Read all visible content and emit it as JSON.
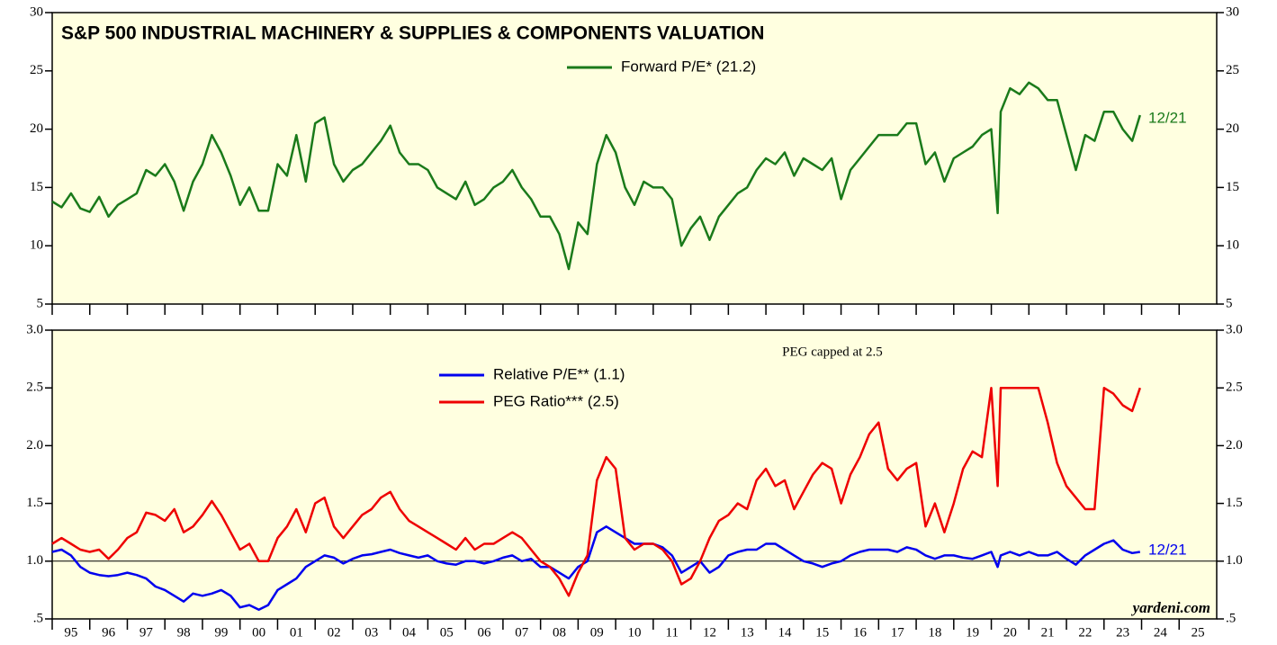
{
  "chart_data": [
    {
      "type": "line",
      "title": "S&P 500 INDUSTRIAL MACHINERY & SUPPLIES & COMPONENTS VALUATION",
      "xlim": [
        1995,
        2026
      ],
      "ylim": [
        5,
        30
      ],
      "yticks": [
        5,
        10,
        15,
        20,
        25,
        30
      ],
      "x": [
        1995,
        1995.25,
        1995.5,
        1995.75,
        1996,
        1996.25,
        1996.5,
        1996.75,
        1997,
        1997.25,
        1997.5,
        1997.75,
        1998,
        1998.25,
        1998.5,
        1998.75,
        1999,
        1999.25,
        1999.5,
        1999.75,
        2000,
        2000.25,
        2000.5,
        2000.75,
        2001,
        2001.25,
        2001.5,
        2001.75,
        2002,
        2002.25,
        2002.5,
        2002.75,
        2003,
        2003.25,
        2003.5,
        2003.75,
        2004,
        2004.25,
        2004.5,
        2004.75,
        2005,
        2005.25,
        2005.5,
        2005.75,
        2006,
        2006.25,
        2006.5,
        2006.75,
        2007,
        2007.25,
        2007.5,
        2007.75,
        2008,
        2008.25,
        2008.5,
        2008.75,
        2009,
        2009.25,
        2009.5,
        2009.75,
        2010,
        2010.25,
        2010.5,
        2010.75,
        2011,
        2011.25,
        2011.5,
        2011.75,
        2012,
        2012.25,
        2012.5,
        2012.75,
        2013,
        2013.25,
        2013.5,
        2013.75,
        2014,
        2014.25,
        2014.5,
        2014.75,
        2015,
        2015.25,
        2015.5,
        2015.75,
        2016,
        2016.25,
        2016.5,
        2016.75,
        2017,
        2017.25,
        2017.5,
        2017.75,
        2018,
        2018.25,
        2018.5,
        2018.75,
        2019,
        2019.25,
        2019.5,
        2019.75,
        2020,
        2020.17,
        2020.25,
        2020.5,
        2020.75,
        2021,
        2021.25,
        2021.5,
        2021.75,
        2022,
        2022.25,
        2022.5,
        2022.75,
        2023,
        2023.25,
        2023.5,
        2023.75,
        2023.96
      ],
      "series": [
        {
          "name": "Forward P/E* (21.2)",
          "color": "#1a7a1a",
          "values": [
            13.8,
            13.3,
            14.5,
            13.2,
            12.9,
            14.2,
            12.5,
            13.5,
            14.0,
            14.5,
            16.5,
            16.0,
            17.0,
            15.5,
            13.0,
            15.5,
            17.0,
            19.5,
            18.0,
            16.0,
            13.5,
            15.0,
            13.0,
            13.0,
            17.0,
            16.0,
            19.5,
            15.5,
            20.5,
            21.0,
            17.0,
            15.5,
            16.5,
            17.0,
            18.0,
            19.0,
            20.3,
            18.0,
            17.0,
            17.0,
            16.5,
            15.0,
            14.5,
            14.0,
            15.5,
            13.5,
            14.0,
            15.0,
            15.5,
            16.5,
            15.0,
            14.0,
            12.5,
            12.5,
            11.0,
            8.0,
            12.0,
            11.0,
            17.0,
            19.5,
            18.0,
            15.0,
            13.5,
            15.5,
            15.0,
            15.0,
            14.0,
            10.0,
            11.5,
            12.5,
            10.5,
            12.5,
            13.5,
            14.5,
            15.0,
            16.5,
            17.5,
            17.0,
            18.0,
            16.0,
            17.5,
            17.0,
            16.5,
            17.5,
            14.0,
            16.5,
            17.5,
            18.5,
            19.5,
            19.5,
            19.5,
            20.5,
            20.5,
            17.0,
            18.0,
            15.5,
            17.5,
            18.0,
            18.5,
            19.5,
            20.0,
            12.8,
            21.5,
            23.5,
            23.0,
            24.0,
            23.5,
            22.5,
            22.5,
            19.5,
            16.5,
            19.5,
            19.0,
            21.5,
            21.5,
            20.0,
            19.0,
            21.2
          ]
        }
      ],
      "annotations": [
        "12/21"
      ]
    },
    {
      "type": "line",
      "xlim": [
        1995,
        2026
      ],
      "xticks": [
        {
          "value": 1995,
          "label": "95"
        },
        {
          "value": 1996,
          "label": "96"
        },
        {
          "value": 1997,
          "label": "97"
        },
        {
          "value": 1998,
          "label": "98"
        },
        {
          "value": 1999,
          "label": "99"
        },
        {
          "value": 2000,
          "label": "00"
        },
        {
          "value": 2001,
          "label": "01"
        },
        {
          "value": 2002,
          "label": "02"
        },
        {
          "value": 2003,
          "label": "03"
        },
        {
          "value": 2004,
          "label": "04"
        },
        {
          "value": 2005,
          "label": "05"
        },
        {
          "value": 2006,
          "label": "06"
        },
        {
          "value": 2007,
          "label": "07"
        },
        {
          "value": 2008,
          "label": "08"
        },
        {
          "value": 2009,
          "label": "09"
        },
        {
          "value": 2010,
          "label": "10"
        },
        {
          "value": 2011,
          "label": "11"
        },
        {
          "value": 2012,
          "label": "12"
        },
        {
          "value": 2013,
          "label": "13"
        },
        {
          "value": 2014,
          "label": "14"
        },
        {
          "value": 2015,
          "label": "15"
        },
        {
          "value": 2016,
          "label": "16"
        },
        {
          "value": 2017,
          "label": "17"
        },
        {
          "value": 2018,
          "label": "18"
        },
        {
          "value": 2019,
          "label": "19"
        },
        {
          "value": 2020,
          "label": "20"
        },
        {
          "value": 2021,
          "label": "21"
        },
        {
          "value": 2022,
          "label": "22"
        },
        {
          "value": 2023,
          "label": "23"
        },
        {
          "value": 2024,
          "label": "24"
        },
        {
          "value": 2025,
          "label": "25"
        }
      ],
      "ylim": [
        0.5,
        3.0
      ],
      "yticks": [
        {
          "value": 0.5,
          "label": ".5"
        },
        {
          "value": 1.0,
          "label": "1.0"
        },
        1.5,
        {
          "value": 2.0,
          "label": "2.0"
        },
        2.5,
        {
          "value": 3.0,
          "label": "3.0"
        }
      ],
      "x": [
        1995,
        1995.25,
        1995.5,
        1995.75,
        1996,
        1996.25,
        1996.5,
        1996.75,
        1997,
        1997.25,
        1997.5,
        1997.75,
        1998,
        1998.25,
        1998.5,
        1998.75,
        1999,
        1999.25,
        1999.5,
        1999.75,
        2000,
        2000.25,
        2000.5,
        2000.75,
        2001,
        2001.25,
        2001.5,
        2001.75,
        2002,
        2002.25,
        2002.5,
        2002.75,
        2003,
        2003.25,
        2003.5,
        2003.75,
        2004,
        2004.25,
        2004.5,
        2004.75,
        2005,
        2005.25,
        2005.5,
        2005.75,
        2006,
        2006.25,
        2006.5,
        2006.75,
        2007,
        2007.25,
        2007.5,
        2007.75,
        2008,
        2008.25,
        2008.5,
        2008.75,
        2009,
        2009.25,
        2009.5,
        2009.75,
        2010,
        2010.25,
        2010.5,
        2010.75,
        2011,
        2011.25,
        2011.5,
        2011.75,
        2012,
        2012.25,
        2012.5,
        2012.75,
        2013,
        2013.25,
        2013.5,
        2013.75,
        2014,
        2014.25,
        2014.5,
        2014.75,
        2015,
        2015.25,
        2015.5,
        2015.75,
        2016,
        2016.25,
        2016.5,
        2016.75,
        2017,
        2017.25,
        2017.5,
        2017.75,
        2018,
        2018.25,
        2018.5,
        2018.75,
        2019,
        2019.25,
        2019.5,
        2019.75,
        2020,
        2020.17,
        2020.25,
        2020.5,
        2020.75,
        2021,
        2021.25,
        2021.5,
        2021.75,
        2022,
        2022.25,
        2022.5,
        2022.75,
        2023,
        2023.25,
        2023.5,
        2023.75,
        2023.96
      ],
      "series": [
        {
          "name": "Relative P/E** (1.1)",
          "color": "#0000ee",
          "values": [
            1.08,
            1.1,
            1.05,
            0.95,
            0.9,
            0.88,
            0.87,
            0.88,
            0.9,
            0.88,
            0.85,
            0.78,
            0.75,
            0.7,
            0.65,
            0.72,
            0.7,
            0.72,
            0.75,
            0.7,
            0.6,
            0.62,
            0.58,
            0.62,
            0.75,
            0.8,
            0.85,
            0.95,
            1.0,
            1.05,
            1.03,
            0.98,
            1.02,
            1.05,
            1.06,
            1.08,
            1.1,
            1.07,
            1.05,
            1.03,
            1.05,
            1.0,
            0.98,
            0.97,
            1.0,
            1.0,
            0.98,
            1.0,
            1.03,
            1.05,
            1.0,
            1.02,
            0.95,
            0.95,
            0.9,
            0.85,
            0.95,
            1.0,
            1.25,
            1.3,
            1.25,
            1.2,
            1.15,
            1.15,
            1.15,
            1.12,
            1.05,
            0.9,
            0.95,
            1.0,
            0.9,
            0.95,
            1.05,
            1.08,
            1.1,
            1.1,
            1.15,
            1.15,
            1.1,
            1.05,
            1.0,
            0.98,
            0.95,
            0.98,
            1.0,
            1.05,
            1.08,
            1.1,
            1.1,
            1.1,
            1.08,
            1.12,
            1.1,
            1.05,
            1.02,
            1.05,
            1.05,
            1.03,
            1.02,
            1.05,
            1.08,
            0.95,
            1.05,
            1.08,
            1.05,
            1.08,
            1.05,
            1.05,
            1.08,
            1.02,
            0.97,
            1.05,
            1.1,
            1.15,
            1.18,
            1.1,
            1.07,
            1.08
          ]
        },
        {
          "name": "PEG Ratio*** (2.5)",
          "color": "#ee0000",
          "values": [
            1.15,
            1.2,
            1.15,
            1.1,
            1.08,
            1.1,
            1.02,
            1.1,
            1.2,
            1.25,
            1.42,
            1.4,
            1.35,
            1.45,
            1.25,
            1.3,
            1.4,
            1.52,
            1.4,
            1.25,
            1.1,
            1.15,
            1.0,
            1.0,
            1.2,
            1.3,
            1.45,
            1.25,
            1.5,
            1.55,
            1.3,
            1.2,
            1.3,
            1.4,
            1.45,
            1.55,
            1.6,
            1.45,
            1.35,
            1.3,
            1.25,
            1.2,
            1.15,
            1.1,
            1.2,
            1.1,
            1.15,
            1.15,
            1.2,
            1.25,
            1.2,
            1.1,
            1.0,
            0.95,
            0.85,
            0.7,
            0.9,
            1.05,
            1.7,
            1.9,
            1.8,
            1.2,
            1.1,
            1.15,
            1.15,
            1.1,
            1.0,
            0.8,
            0.85,
            1.0,
            1.2,
            1.35,
            1.4,
            1.5,
            1.45,
            1.7,
            1.8,
            1.65,
            1.7,
            1.45,
            1.6,
            1.75,
            1.85,
            1.8,
            1.5,
            1.75,
            1.9,
            2.1,
            2.2,
            1.8,
            1.7,
            1.8,
            1.85,
            1.3,
            1.5,
            1.25,
            1.5,
            1.8,
            1.95,
            1.9,
            2.5,
            1.65,
            2.5,
            2.5,
            2.5,
            2.5,
            2.5,
            2.2,
            1.85,
            1.65,
            1.55,
            1.45,
            1.45,
            2.5,
            2.45,
            2.35,
            2.3,
            2.5
          ]
        }
      ],
      "annotations": [
        "PEG capped at 2.5",
        "12/21",
        "yardeni.com"
      ]
    }
  ]
}
